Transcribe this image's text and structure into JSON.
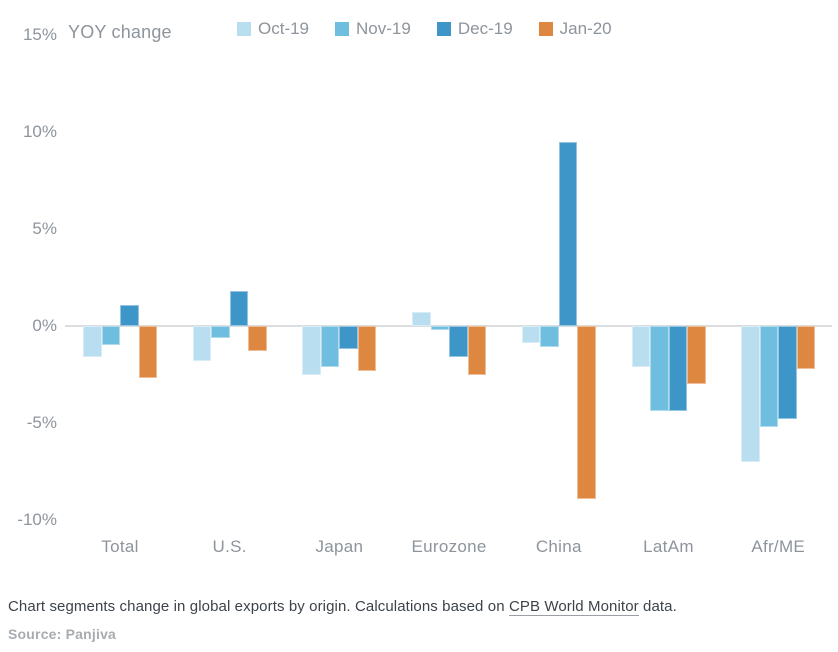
{
  "chart_data": {
    "type": "bar",
    "title": "YOY change",
    "categories": [
      "Total",
      "U.S.",
      "Japan",
      "Eurozone",
      "China",
      "LatAm",
      "Afr/ME"
    ],
    "series": [
      {
        "name": "Oct-19",
        "color": "#b9def0",
        "values": [
          -1.6,
          -1.8,
          -2.5,
          0.7,
          -0.9,
          -2.1,
          -7.0
        ]
      },
      {
        "name": "Nov-19",
        "color": "#6fbddf",
        "values": [
          -1.0,
          -0.6,
          -2.1,
          -0.2,
          -1.1,
          -4.4,
          -5.2
        ]
      },
      {
        "name": "Dec-19",
        "color": "#3e95c7",
        "values": [
          1.1,
          1.8,
          -1.2,
          -1.6,
          9.5,
          -4.4,
          -4.8
        ]
      },
      {
        "name": "Jan-20",
        "color": "#dd8741",
        "values": [
          -2.7,
          -1.3,
          -2.3,
          -2.5,
          -8.9,
          -3.0,
          -2.2
        ]
      }
    ],
    "yticks": [
      15,
      10,
      5,
      0,
      -5,
      -10
    ],
    "ytick_suffix": "%",
    "ylim": [
      -10,
      15
    ],
    "grid": false,
    "legend_position": "top"
  },
  "footer": {
    "caption_prefix": "Chart segments change in global exports by origin. Calculations based on ",
    "caption_link": "CPB World Monitor",
    "caption_suffix": " data.",
    "source": "Source: Panjiva"
  },
  "colors": {
    "axis_text": "#8d949b",
    "zero_line": "#dcdddf",
    "caption_text": "#3c434a",
    "source_text": "#a7acb1",
    "background": "#ffffff"
  }
}
